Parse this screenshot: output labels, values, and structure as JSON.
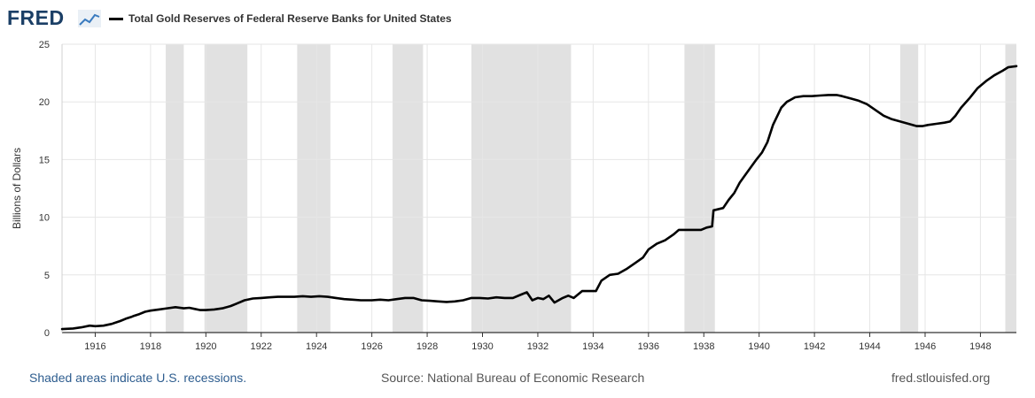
{
  "header": {
    "logo": "FRED",
    "legend_label": "Total Gold Reserves of Federal Reserve Banks for United States"
  },
  "footer": {
    "recession_note": "Shaded areas indicate U.S. recessions.",
    "source": "Source: National Bureau of Economic Research",
    "site": "fred.stlouisfed.org"
  },
  "colors": {
    "series": "#000000",
    "recession": "#e1e1e1",
    "grid": "#e6e6e6",
    "brand": "#1b3f66"
  },
  "chart_data": {
    "type": "line",
    "title": "",
    "xlabel": "",
    "ylabel": "Billions of Dollars",
    "xlim": [
      1914.8,
      1949.3
    ],
    "ylim": [
      0,
      25
    ],
    "x_ticks": [
      1916,
      1918,
      1920,
      1922,
      1924,
      1926,
      1928,
      1930,
      1932,
      1934,
      1936,
      1938,
      1940,
      1942,
      1944,
      1946,
      1948
    ],
    "y_ticks": [
      0,
      5,
      10,
      15,
      20,
      25
    ],
    "grid": true,
    "recessions": [
      [
        1918.55,
        1919.2
      ],
      [
        1919.95,
        1921.5
      ],
      [
        1923.3,
        1924.5
      ],
      [
        1926.75,
        1927.85
      ],
      [
        1929.6,
        1933.2
      ],
      [
        1937.3,
        1938.4
      ],
      [
        1945.1,
        1945.75
      ],
      [
        1948.9,
        1949.3
      ]
    ],
    "series": [
      {
        "name": "Total Gold Reserves of Federal Reserve Banks for United States",
        "x": [
          1914.8,
          1915.2,
          1915.5,
          1915.8,
          1916.0,
          1916.3,
          1916.6,
          1916.9,
          1917.1,
          1917.3,
          1917.4,
          1917.6,
          1917.8,
          1918.0,
          1918.3,
          1918.6,
          1918.9,
          1919.2,
          1919.4,
          1919.6,
          1919.8,
          1920.0,
          1920.3,
          1920.6,
          1920.9,
          1921.1,
          1921.4,
          1921.7,
          1922.0,
          1922.3,
          1922.6,
          1922.9,
          1923.2,
          1923.5,
          1923.8,
          1924.1,
          1924.4,
          1924.7,
          1925.0,
          1925.3,
          1925.6,
          1926.0,
          1926.3,
          1926.6,
          1926.9,
          1927.2,
          1927.5,
          1927.8,
          1928.1,
          1928.4,
          1928.7,
          1929.0,
          1929.3,
          1929.6,
          1929.9,
          1930.2,
          1930.5,
          1930.8,
          1931.1,
          1931.4,
          1931.6,
          1931.8,
          1932.0,
          1932.2,
          1932.4,
          1932.6,
          1932.9,
          1933.1,
          1933.3,
          1933.6,
          1933.9,
          1934.1,
          1934.3,
          1934.6,
          1934.9,
          1935.2,
          1935.5,
          1935.8,
          1936.0,
          1936.3,
          1936.6,
          1936.9,
          1937.1,
          1937.4,
          1937.7,
          1937.9,
          1938.1,
          1938.3,
          1938.35,
          1938.7,
          1938.9,
          1939.1,
          1939.3,
          1939.6,
          1939.9,
          1940.1,
          1940.3,
          1940.5,
          1940.8,
          1941.0,
          1941.3,
          1941.6,
          1941.9,
          1942.2,
          1942.5,
          1942.8,
          1943.0,
          1943.3,
          1943.6,
          1943.9,
          1944.2,
          1944.5,
          1944.8,
          1945.1,
          1945.4,
          1945.7,
          1945.9,
          1946.1,
          1946.4,
          1946.7,
          1946.9,
          1947.1,
          1947.3,
          1947.6,
          1947.9,
          1948.2,
          1948.5,
          1948.8,
          1949.0,
          1949.3
        ],
        "values": [
          0.3,
          0.35,
          0.45,
          0.6,
          0.55,
          0.6,
          0.75,
          1.0,
          1.2,
          1.35,
          1.45,
          1.6,
          1.8,
          1.9,
          2.0,
          2.1,
          2.2,
          2.1,
          2.15,
          2.05,
          1.95,
          1.95,
          2.0,
          2.1,
          2.3,
          2.5,
          2.8,
          2.95,
          3.0,
          3.05,
          3.1,
          3.1,
          3.1,
          3.15,
          3.1,
          3.15,
          3.1,
          3.0,
          2.9,
          2.85,
          2.8,
          2.8,
          2.85,
          2.8,
          2.9,
          3.0,
          3.0,
          2.8,
          2.75,
          2.7,
          2.65,
          2.7,
          2.8,
          3.0,
          3.0,
          2.95,
          3.05,
          3.0,
          3.0,
          3.3,
          3.5,
          2.8,
          3.0,
          2.9,
          3.2,
          2.6,
          3.0,
          3.2,
          3.0,
          3.6,
          3.6,
          3.6,
          4.5,
          5.0,
          5.1,
          5.5,
          6.0,
          6.5,
          7.2,
          7.7,
          8.0,
          8.5,
          8.9,
          8.9,
          8.9,
          8.9,
          9.1,
          9.2,
          10.6,
          10.8,
          11.5,
          12.1,
          13.0,
          14.0,
          15.0,
          15.6,
          16.5,
          18.0,
          19.5,
          20.0,
          20.4,
          20.5,
          20.5,
          20.55,
          20.6,
          20.6,
          20.5,
          20.3,
          20.1,
          19.8,
          19.3,
          18.8,
          18.5,
          18.3,
          18.1,
          17.9,
          17.9,
          18.0,
          18.1,
          18.2,
          18.3,
          18.8,
          19.5,
          20.3,
          21.2,
          21.8,
          22.3,
          22.7,
          23.0,
          23.1
        ]
      }
    ]
  }
}
